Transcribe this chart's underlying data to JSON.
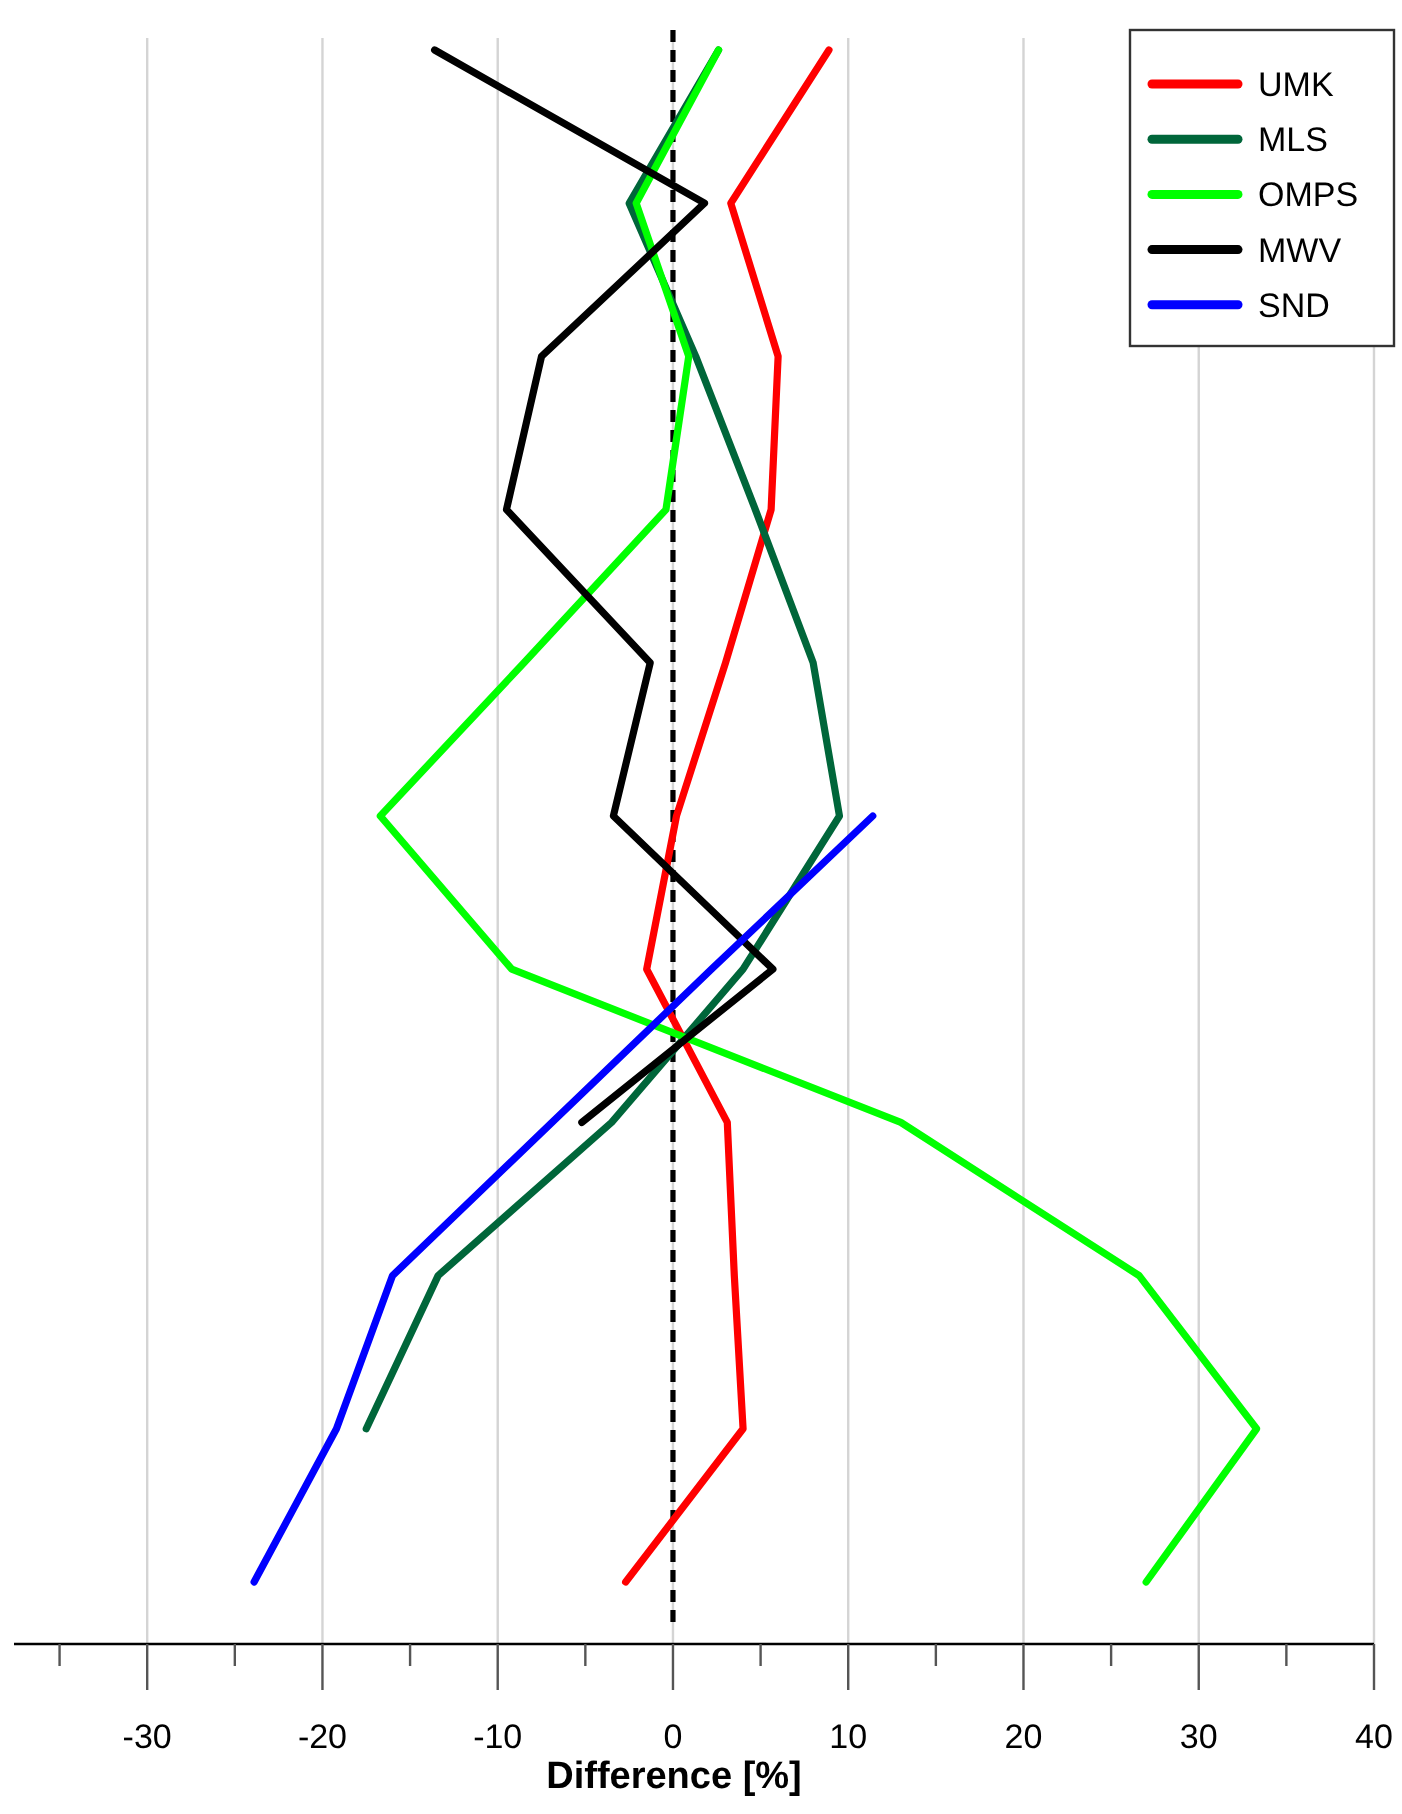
{
  "chart_data": {
    "type": "line",
    "orientation": "horizontal",
    "xlabel": "Difference [%]",
    "categories": [
      null,
      null,
      null,
      null,
      null,
      null,
      null,
      null,
      null,
      null,
      null
    ],
    "series": [
      {
        "name": "UMK",
        "color": "#ff0000",
        "values": [
          8.9,
          3.3,
          6.0,
          5.6,
          3.0,
          0.2,
          -1.5,
          3.1,
          3.5,
          4.0,
          -2.7
        ]
      },
      {
        "name": "MLS",
        "color": "#00663a",
        "values": [
          2.6,
          -2.5,
          1.3,
          4.7,
          8.0,
          9.5,
          4.0,
          -3.5,
          -13.4,
          -17.5,
          null
        ]
      },
      {
        "name": "OMPS",
        "color": "#00ff00",
        "values": [
          2.6,
          -2.1,
          0.9,
          -0.4,
          -8.5,
          -16.7,
          -9.2,
          13.0,
          26.6,
          33.3,
          27.0
        ]
      },
      {
        "name": "MWV",
        "color": "#000000",
        "values": [
          -13.6,
          1.8,
          -7.5,
          -9.5,
          -1.3,
          -3.4,
          5.7,
          -5.2,
          null,
          null,
          null
        ]
      },
      {
        "name": "SND",
        "color": "#0000ff",
        "values": [
          null,
          null,
          null,
          null,
          null,
          11.4,
          2.2,
          -6.9,
          -16.0,
          -19.2,
          -23.9
        ]
      }
    ],
    "xlim": [
      -37.6,
      40
    ],
    "xticks": [
      {
        "value": -35,
        "label": null
      },
      -30,
      {
        "value": -25,
        "label": null
      },
      -20,
      {
        "value": -15,
        "label": null
      },
      -10,
      {
        "value": -5,
        "label": null
      },
      0,
      {
        "value": 5,
        "label": null
      },
      10,
      {
        "value": 15,
        "label": null
      },
      20,
      {
        "value": 25,
        "label": null
      },
      30,
      {
        "value": 35,
        "label": null
      },
      40
    ],
    "grid": "x",
    "legend": "top right",
    "ref_lines": [
      {
        "axis": "x",
        "value": 0,
        "color": "#000000",
        "line_style": "dashed"
      }
    ]
  }
}
